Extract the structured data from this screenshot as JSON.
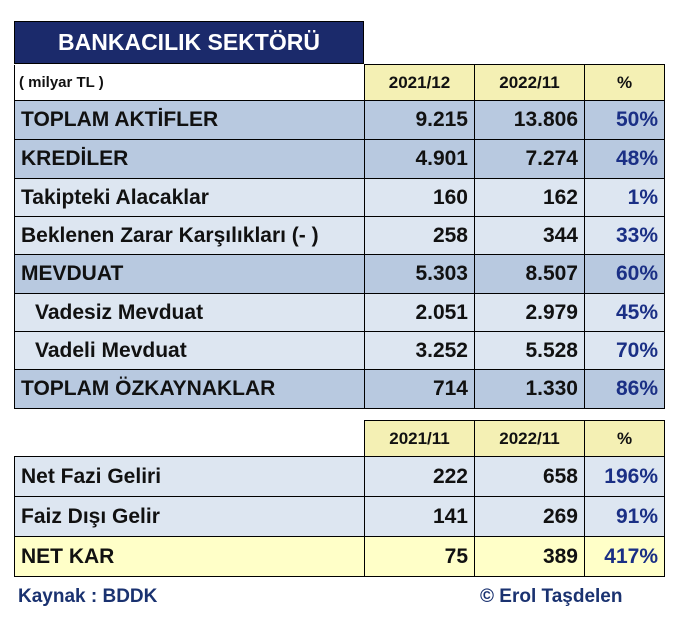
{
  "title": "BANKACILIK SEKTÖRÜ",
  "unit": "( milyar TL )",
  "header1": {
    "col1": "2021/12",
    "col2": "2022/11",
    "col3": "%"
  },
  "section1": [
    {
      "label": "TOPLAM AKTİFLER",
      "v1": "9.215",
      "v2": "13.806",
      "pct": "50%"
    },
    {
      "label": "KREDİLER",
      "v1": "4.901",
      "v2": "7.274",
      "pct": "48%"
    },
    {
      "label": "Takipteki Alacaklar",
      "v1": "160",
      "v2": "162",
      "pct": "1%"
    },
    {
      "label": "Beklenen Zarar Karşılıkları (- )",
      "v1": "258",
      "v2": "344",
      "pct": "33%"
    },
    {
      "label": "MEVDUAT",
      "v1": "5.303",
      "v2": "8.507",
      "pct": "60%"
    },
    {
      "label": "Vadesiz Mevduat",
      "v1": "2.051",
      "v2": "2.979",
      "pct": "45%"
    },
    {
      "label": "Vadeli Mevduat",
      "v1": "3.252",
      "v2": "5.528",
      "pct": "70%"
    },
    {
      "label": "TOPLAM ÖZKAYNAKLAR",
      "v1": "714",
      "v2": "1.330",
      "pct": "86%"
    }
  ],
  "header2": {
    "col1": "2021/11",
    "col2": "2022/11",
    "col3": "%"
  },
  "section2": [
    {
      "label": "Net Fazi Geliri",
      "v1": "222",
      "v2": "658",
      "pct": "196%"
    },
    {
      "label": "Faiz Dışı Gelir",
      "v1": "141",
      "v2": "269",
      "pct": "91%"
    },
    {
      "label": "NET KAR",
      "v1": "75",
      "v2": "389",
      "pct": "417%"
    }
  ],
  "source": "Kaynak : BDDK",
  "copyright": "© Erol Taşdelen",
  "colors": {
    "title_bg": "#1b2a6b",
    "row_dark": "#b8c9e0",
    "row_light": "#dde6f1",
    "header_yellow": "#f4f0b4",
    "netkar_yellow": "#ffffc8",
    "pct_text": "#1a2f85"
  }
}
